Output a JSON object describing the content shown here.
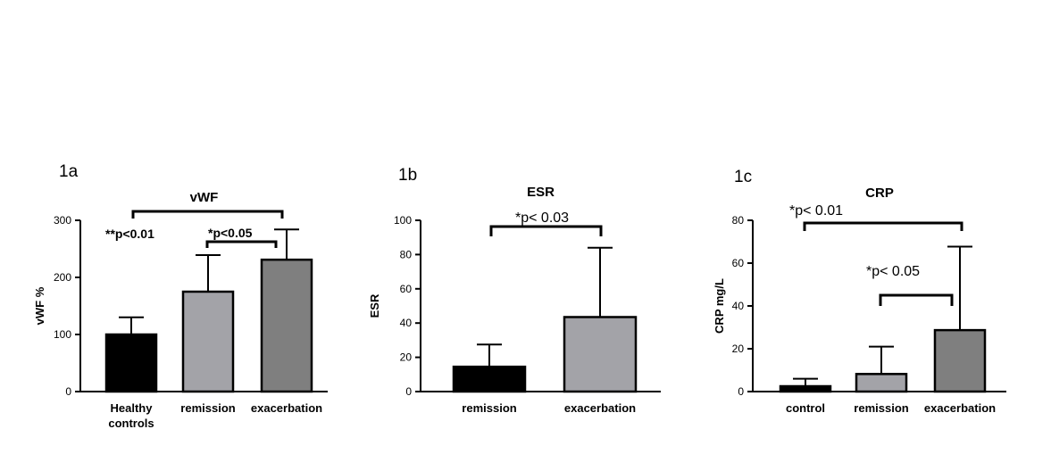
{
  "chart_data": [
    {
      "type": "bar",
      "panel": "1a",
      "title": "vWF",
      "ylabel": "vWF %",
      "ylim": [
        0,
        300
      ],
      "yticks": [
        "0",
        "100",
        "200",
        "300"
      ],
      "categories": [
        "Healthy controls",
        "remission",
        "exacerbation"
      ],
      "category_lines": [
        [
          "Healthy",
          "controls"
        ],
        [
          "remission"
        ],
        [
          "exacerbation"
        ]
      ],
      "values": [
        100,
        175,
        231
      ],
      "errors": [
        30,
        64,
        53
      ],
      "colors": [
        "#000000",
        "#a3a3a8",
        "#7f7f7f"
      ],
      "annotations": [
        {
          "text": "**p<0.01",
          "from": 0,
          "to": 2
        },
        {
          "text": "*p<0.05",
          "from": 1,
          "to": 2
        }
      ]
    },
    {
      "type": "bar",
      "panel": "1b",
      "title": "ESR",
      "ylabel": "ESR",
      "ylim": [
        0,
        100
      ],
      "yticks": [
        "0",
        "20",
        "40",
        "60",
        "80",
        "100"
      ],
      "categories": [
        "remission",
        "exacerbation"
      ],
      "category_lines": [
        [
          "remission"
        ],
        [
          "exacerbation"
        ]
      ],
      "values": [
        14.5,
        43.5
      ],
      "errors": [
        13,
        40.5
      ],
      "colors": [
        "#000000",
        "#a3a3a8"
      ],
      "annotations": [
        {
          "text": "*p< 0.03",
          "from": 0,
          "to": 1
        }
      ]
    },
    {
      "type": "bar",
      "panel": "1c",
      "title": "CRP",
      "ylabel": "CRP mg/L",
      "ylim": [
        0,
        80
      ],
      "yticks": [
        "0",
        "20",
        "40",
        "60",
        "80"
      ],
      "categories": [
        "control",
        "remission",
        "exacerbation"
      ],
      "category_lines": [
        [
          "control"
        ],
        [
          "remission"
        ],
        [
          "exacerbation"
        ]
      ],
      "values": [
        2.5,
        8.2,
        28.7
      ],
      "errors": [
        3.5,
        12.8,
        39
      ],
      "colors": [
        "#000000",
        "#a3a3a8",
        "#7f7f7f"
      ],
      "annotations": [
        {
          "text": "*p< 0.01",
          "from": 0,
          "to": 2
        },
        {
          "text": "*p< 0.05",
          "from": 1,
          "to": 2
        }
      ]
    }
  ]
}
